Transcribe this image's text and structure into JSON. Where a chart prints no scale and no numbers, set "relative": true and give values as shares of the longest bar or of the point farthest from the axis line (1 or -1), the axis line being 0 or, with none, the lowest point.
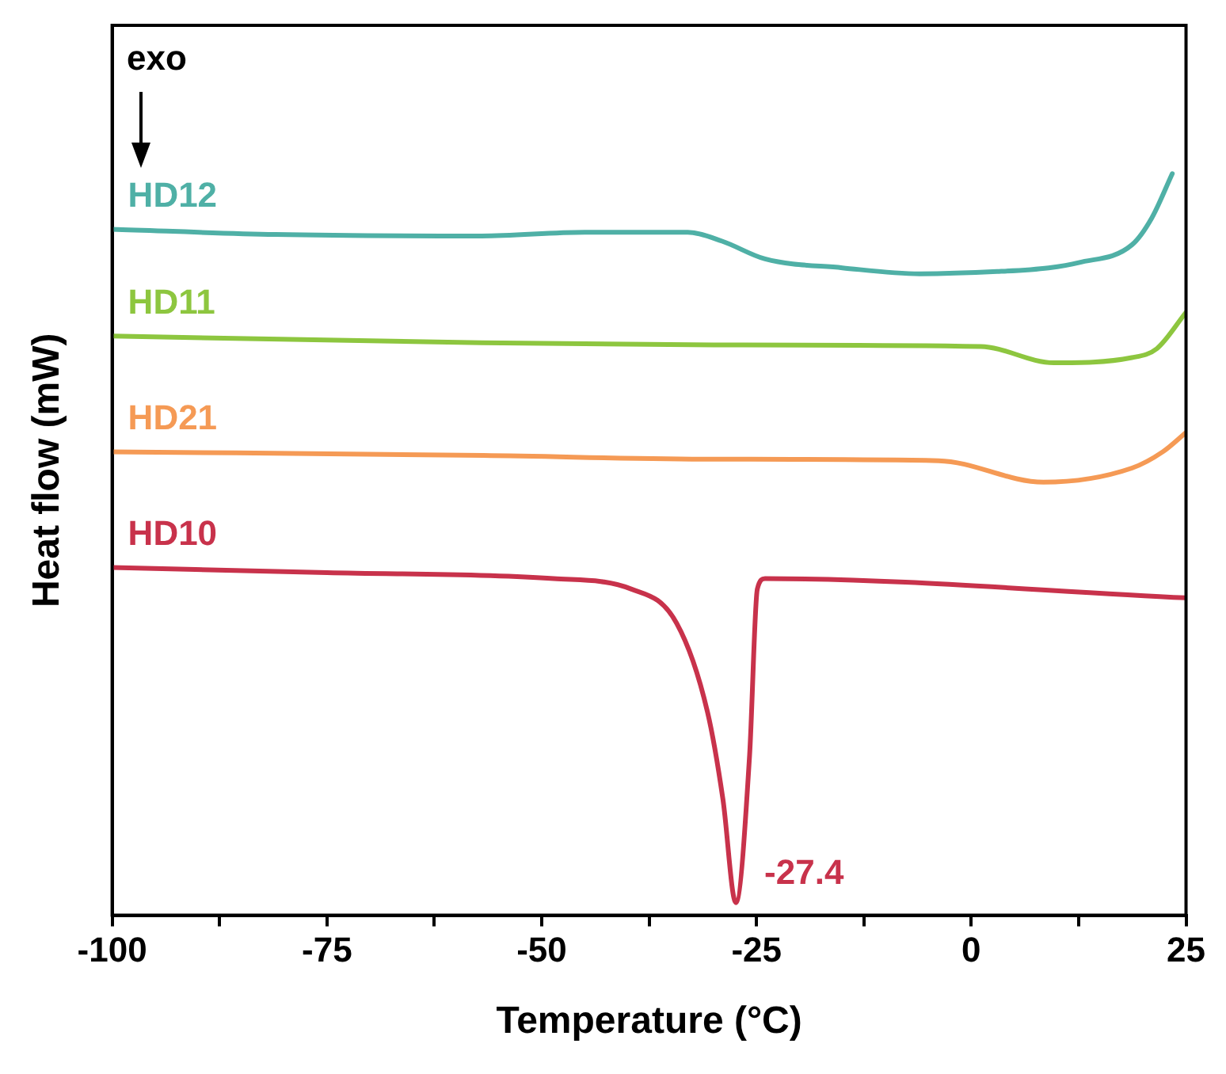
{
  "chart_data": {
    "type": "line",
    "xlabel": "Temperature (°C)",
    "ylabel": "Heat flow (mW)",
    "relative": true,
    "legend": false,
    "marker": "none",
    "line_style": "solid",
    "xlim": [
      -100,
      25
    ],
    "xticks": [
      -100,
      {
        "value": -87.5,
        "label": null
      },
      -75,
      {
        "value": -62.5,
        "label": null
      },
      -50,
      {
        "value": -37.5,
        "label": null
      },
      -25,
      {
        "value": -12.5,
        "label": null
      },
      0,
      {
        "value": 12.5,
        "label": null
      },
      25
    ],
    "annotations": [
      "exo",
      {
        "text": "-27.4",
        "x": -27.4,
        "y": 0.017
      }
    ],
    "series": [
      {
        "name": "HD12",
        "color": "#4fb0a6",
        "x": [
          -100,
          -81,
          -57,
          -45,
          -33,
          -29,
          -24,
          -15,
          -6,
          3,
          9,
          12.5,
          18.7,
          21,
          23.4
        ],
        "values": [
          0.925,
          0.918,
          0.916,
          0.921,
          0.921,
          0.909,
          0.885,
          0.873,
          0.865,
          0.868,
          0.873,
          0.88,
          0.904,
          0.94,
          1.0
        ]
      },
      {
        "name": "HD11",
        "color": "#8dc63f",
        "x": [
          -100,
          -57,
          -30,
          1.1,
          9.6,
          18.7,
          21.6,
          25
        ],
        "values": [
          0.781,
          0.772,
          0.769,
          0.767,
          0.745,
          0.752,
          0.764,
          0.813
        ]
      },
      {
        "name": "HD21",
        "color": "#f59a55",
        "x": [
          -100,
          -56.8,
          -30,
          -3.8,
          8.4,
          18.7,
          22.3,
          25
        ],
        "values": [
          0.625,
          0.62,
          0.615,
          0.613,
          0.584,
          0.603,
          0.625,
          0.651
        ]
      },
      {
        "name": "HD10",
        "color": "#c8324b",
        "x": [
          -100,
          -75,
          -48.6,
          -39.6,
          -34.3,
          -30.7,
          -28.9,
          -27.4,
          -25.8,
          -24.9,
          -24,
          25
        ],
        "values": [
          0.469,
          0.462,
          0.454,
          0.44,
          0.394,
          0.274,
          0.156,
          0.017,
          0.216,
          0.44,
          0.454,
          0.428
        ]
      }
    ]
  }
}
